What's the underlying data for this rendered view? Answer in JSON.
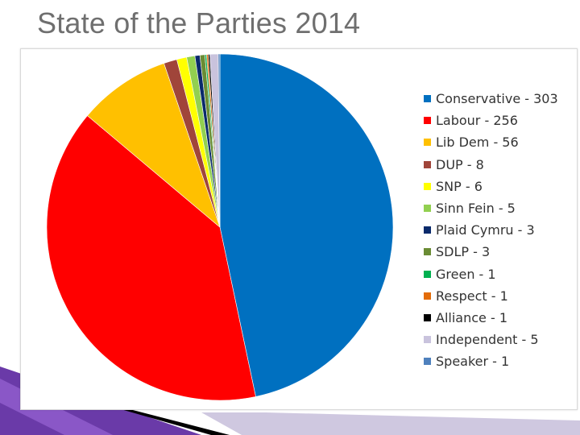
{
  "slide": {
    "title": "State of the Parties 2014"
  },
  "chart_data": {
    "type": "pie",
    "title": "",
    "legend_position": "right",
    "series": [
      {
        "categories": [
          "Conservative",
          "Labour",
          "Lib Dem",
          "DUP",
          "SNP",
          "Sinn Fein",
          "Plaid Cymru",
          "SDLP",
          "Green",
          "Respect",
          "Alliance",
          "Independent",
          "Speaker"
        ],
        "values": [
          303,
          256,
          56,
          8,
          6,
          5,
          3,
          3,
          1,
          1,
          1,
          5,
          1
        ]
      }
    ],
    "legend": [
      {
        "label": "Conservative - 303",
        "color": "#0070c0"
      },
      {
        "label": "Labour - 256",
        "color": "#ff0000"
      },
      {
        "label": "Lib Dem - 56",
        "color": "#ffc000"
      },
      {
        "label": "DUP - 8",
        "color": "#a0453a"
      },
      {
        "label": "SNP - 6",
        "color": "#ffff00"
      },
      {
        "label": "Sinn Fein - 5",
        "color": "#92d050"
      },
      {
        "label": "Plaid Cymru - 3",
        "color": "#0a2a6b"
      },
      {
        "label": "SDLP - 3",
        "color": "#6a8c34"
      },
      {
        "label": "Green - 1",
        "color": "#00b050"
      },
      {
        "label": "Respect - 1",
        "color": "#e36c09"
      },
      {
        "label": "Alliance - 1",
        "color": "#000000"
      },
      {
        "label": "Independent - 5",
        "color": "#c9c3dd"
      },
      {
        "label": "Speaker - 1",
        "color": "#4f81bd"
      }
    ]
  }
}
